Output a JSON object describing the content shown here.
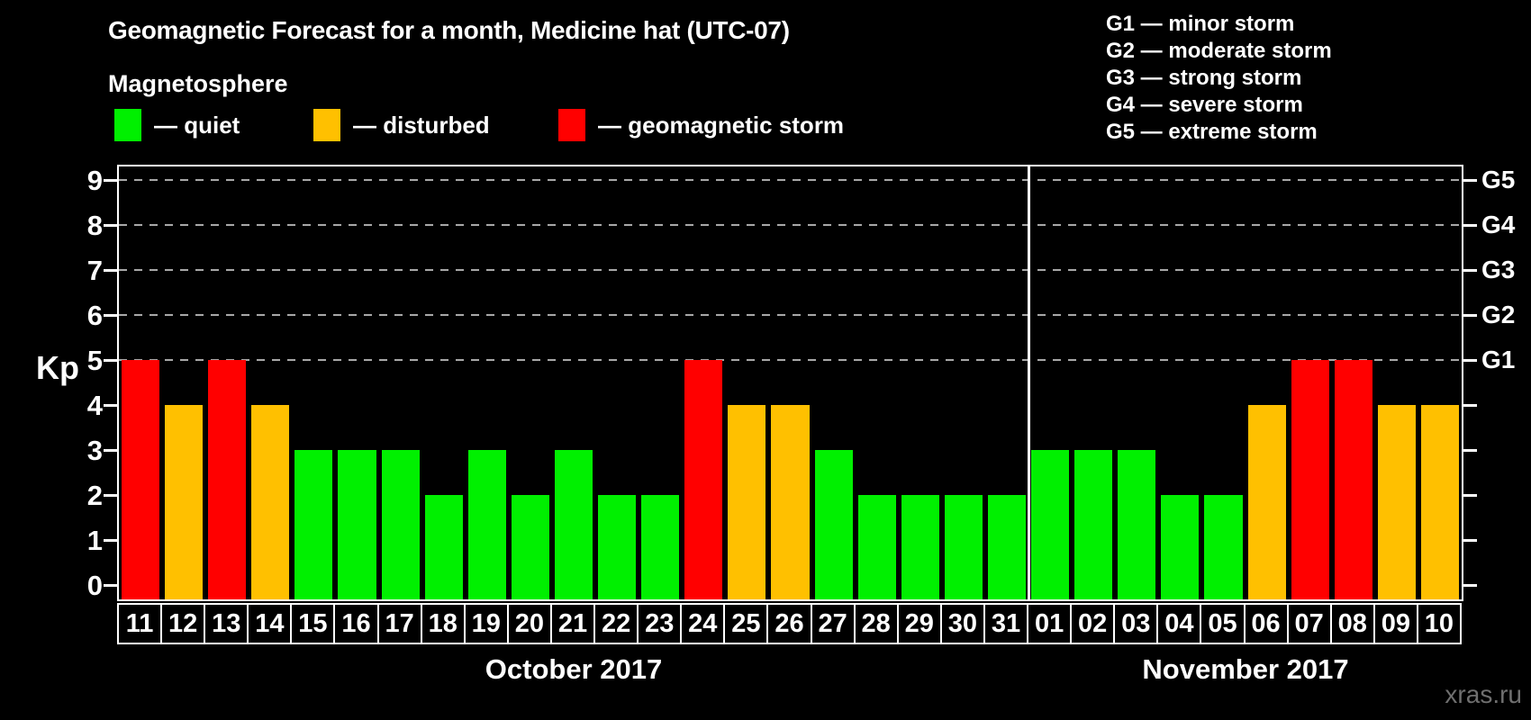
{
  "title": "Geomagnetic Forecast for a month, Medicine hat (UTC-07)",
  "subtitle": "Magnetosphere",
  "watermark": "xras.ru",
  "colors": {
    "quiet": "#00f000",
    "disturbed": "#ffc000",
    "storm": "#ff0000",
    "axis": "#ffffff",
    "grid": "#a8a8a8"
  },
  "legend": {
    "items": [
      {
        "key": "quiet",
        "label": "— quiet",
        "color": "#00f000"
      },
      {
        "key": "disturbed",
        "label": "— disturbed",
        "color": "#ffc000"
      },
      {
        "key": "storm",
        "label": "— geomagnetic storm",
        "color": "#ff0000"
      }
    ]
  },
  "g_legend": [
    "G1 — minor storm",
    "G2 — moderate storm",
    "G3 — strong storm",
    "G4 — severe storm",
    "G5 — extreme storm"
  ],
  "chart_data": {
    "type": "bar",
    "ylabel": "Kp",
    "ylim": [
      0,
      9
    ],
    "y_ticks": [
      0,
      1,
      2,
      3,
      4,
      5,
      6,
      7,
      8,
      9
    ],
    "gridlines_at": [
      5,
      6,
      7,
      8,
      9
    ],
    "right_axis_ticks": [
      {
        "label": "G1",
        "kp": 5
      },
      {
        "label": "G2",
        "kp": 6
      },
      {
        "label": "G3",
        "kp": 7
      },
      {
        "label": "G4",
        "kp": 8
      },
      {
        "label": "G5",
        "kp": 9
      }
    ],
    "legend_position": "top-left",
    "grid": "dashed-upper-half",
    "months": [
      {
        "label": "October 2017",
        "days": [
          {
            "day": "11",
            "kp": 5,
            "level": "storm"
          },
          {
            "day": "12",
            "kp": 4,
            "level": "disturbed"
          },
          {
            "day": "13",
            "kp": 5,
            "level": "storm"
          },
          {
            "day": "14",
            "kp": 4,
            "level": "disturbed"
          },
          {
            "day": "15",
            "kp": 3,
            "level": "quiet"
          },
          {
            "day": "16",
            "kp": 3,
            "level": "quiet"
          },
          {
            "day": "17",
            "kp": 3,
            "level": "quiet"
          },
          {
            "day": "18",
            "kp": 2,
            "level": "quiet"
          },
          {
            "day": "19",
            "kp": 3,
            "level": "quiet"
          },
          {
            "day": "20",
            "kp": 2,
            "level": "quiet"
          },
          {
            "day": "21",
            "kp": 3,
            "level": "quiet"
          },
          {
            "day": "22",
            "kp": 2,
            "level": "quiet"
          },
          {
            "day": "23",
            "kp": 2,
            "level": "quiet"
          },
          {
            "day": "24",
            "kp": 5,
            "level": "storm"
          },
          {
            "day": "25",
            "kp": 4,
            "level": "disturbed"
          },
          {
            "day": "26",
            "kp": 4,
            "level": "disturbed"
          },
          {
            "day": "27",
            "kp": 3,
            "level": "quiet"
          },
          {
            "day": "28",
            "kp": 2,
            "level": "quiet"
          },
          {
            "day": "29",
            "kp": 2,
            "level": "quiet"
          },
          {
            "day": "30",
            "kp": 2,
            "level": "quiet"
          },
          {
            "day": "31",
            "kp": 2,
            "level": "quiet"
          }
        ]
      },
      {
        "label": "November 2017",
        "days": [
          {
            "day": "01",
            "kp": 3,
            "level": "quiet"
          },
          {
            "day": "02",
            "kp": 3,
            "level": "quiet"
          },
          {
            "day": "03",
            "kp": 3,
            "level": "quiet"
          },
          {
            "day": "04",
            "kp": 2,
            "level": "quiet"
          },
          {
            "day": "05",
            "kp": 2,
            "level": "quiet"
          },
          {
            "day": "06",
            "kp": 4,
            "level": "disturbed"
          },
          {
            "day": "07",
            "kp": 5,
            "level": "storm"
          },
          {
            "day": "08",
            "kp": 5,
            "level": "storm"
          },
          {
            "day": "09",
            "kp": 4,
            "level": "disturbed"
          },
          {
            "day": "10",
            "kp": 4,
            "level": "disturbed"
          }
        ]
      }
    ]
  }
}
